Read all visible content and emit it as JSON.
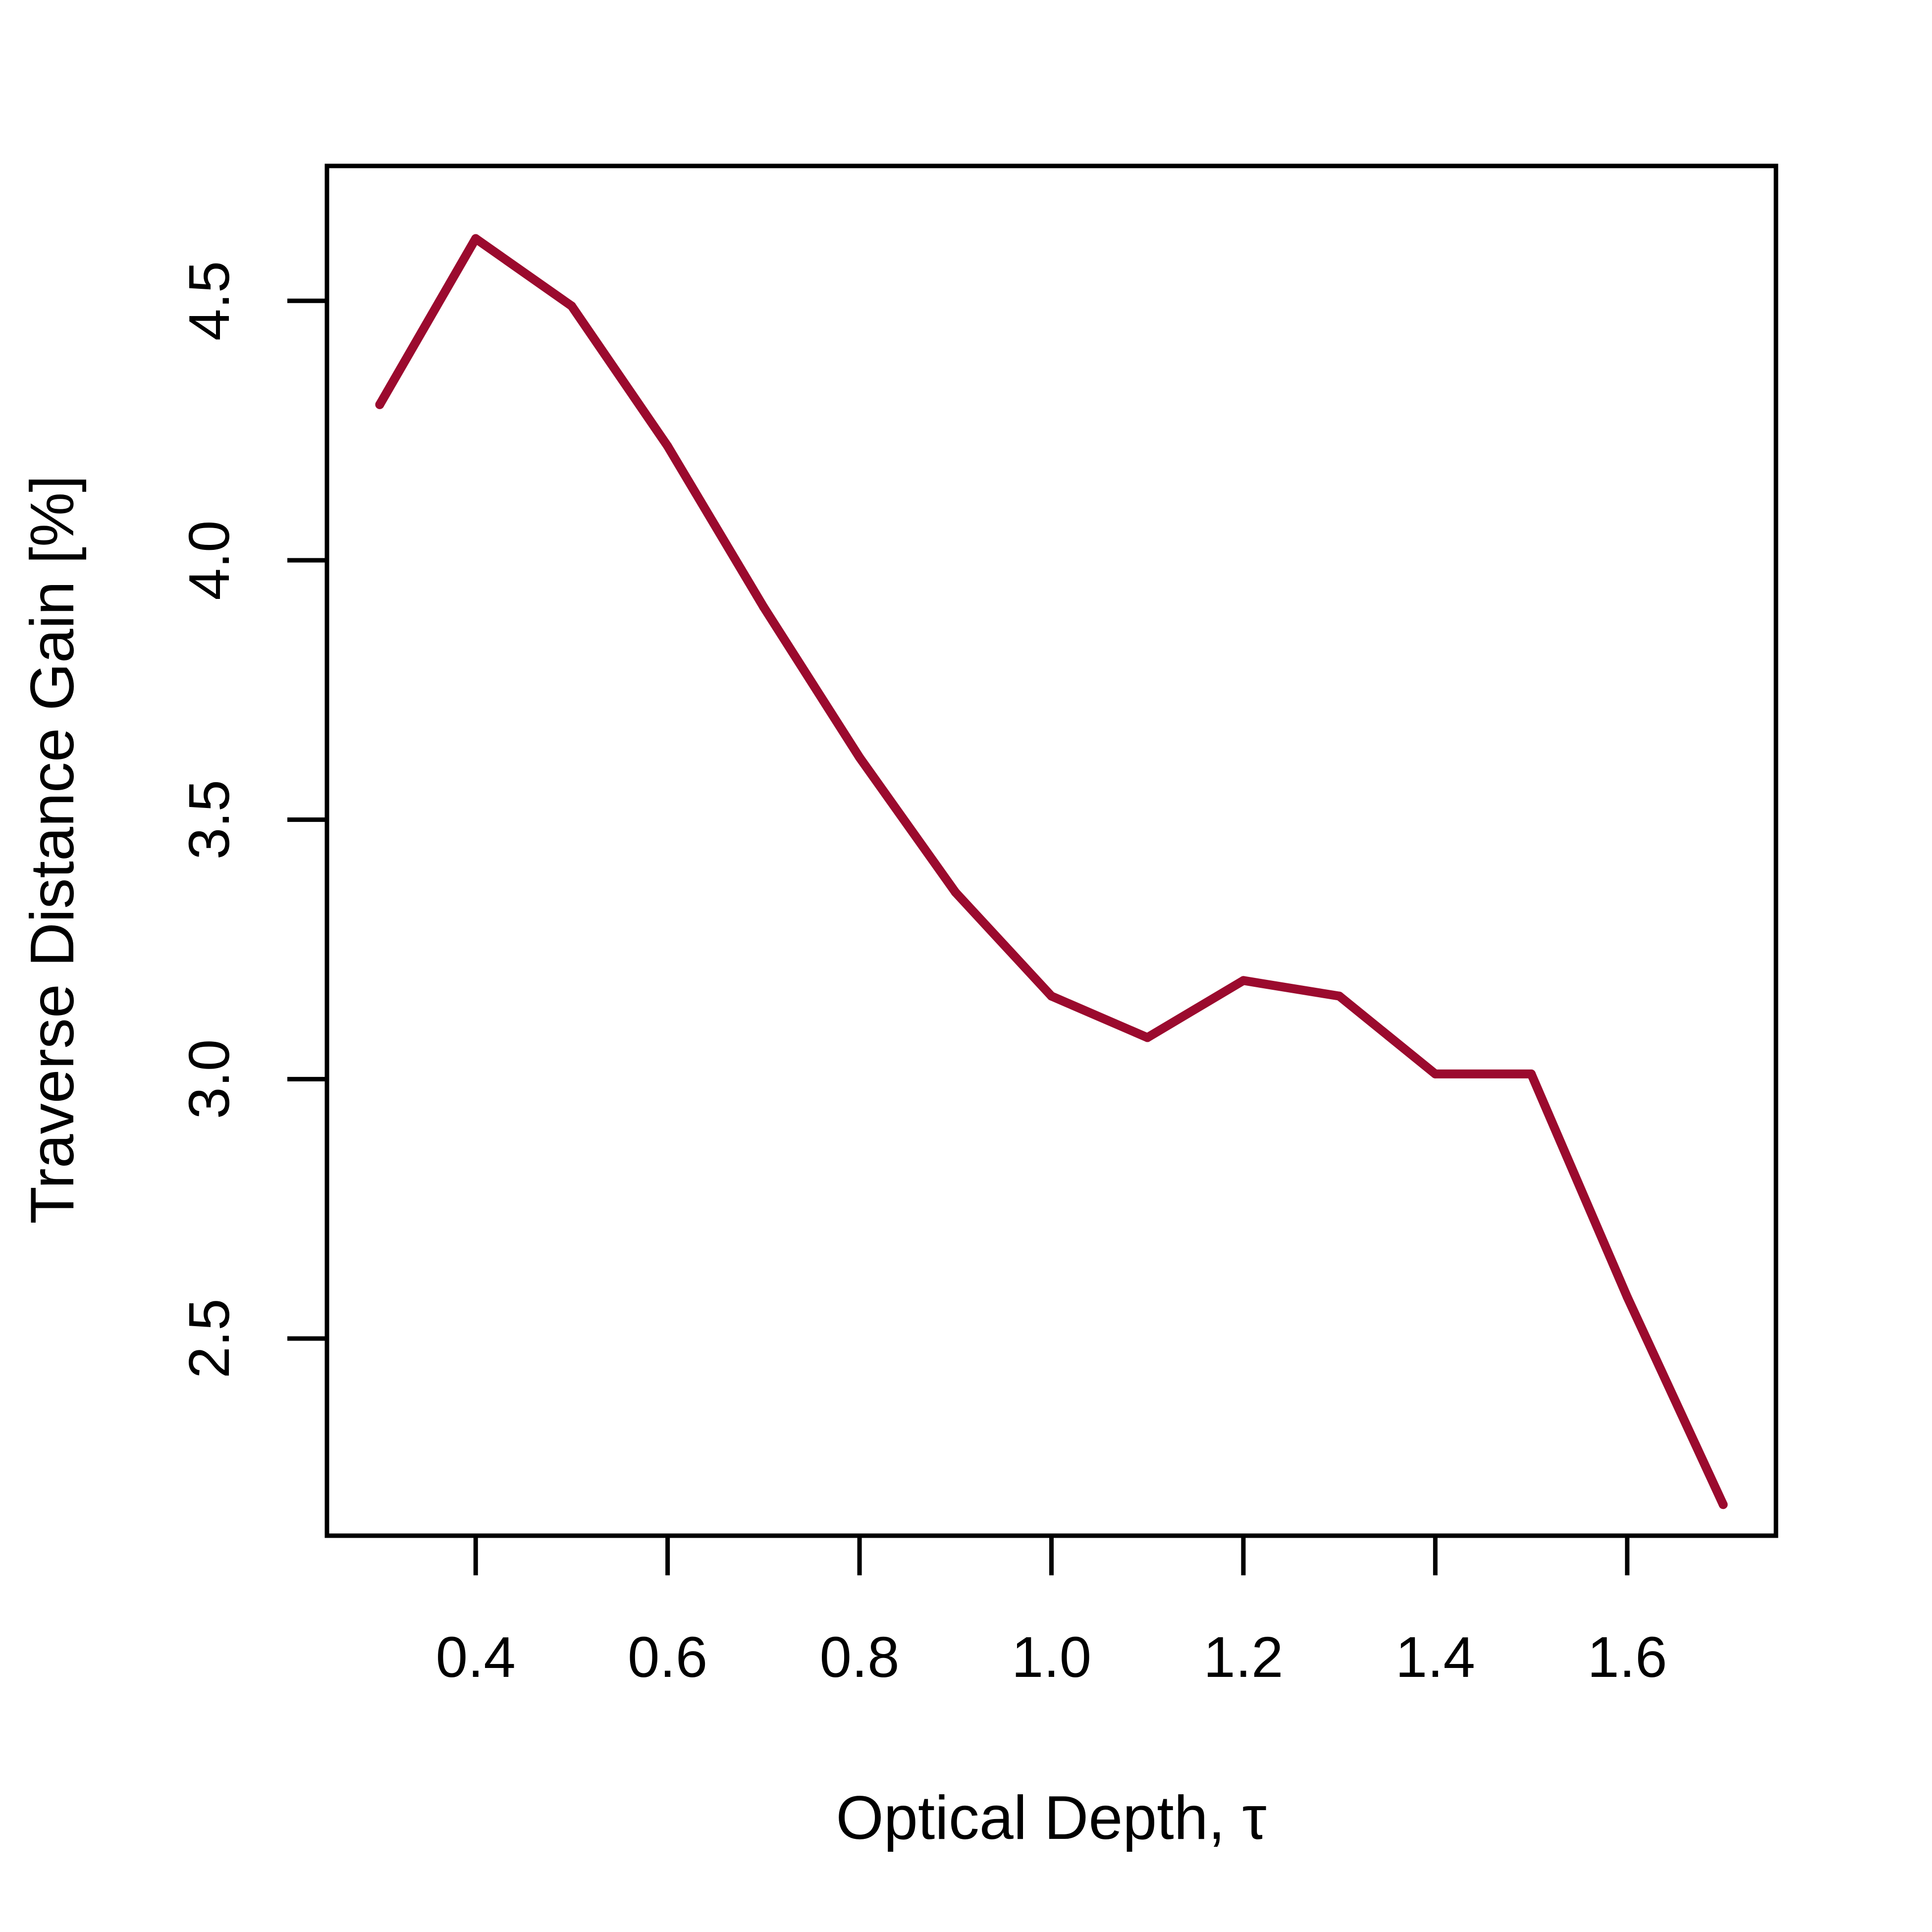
{
  "chart_data": {
    "type": "line",
    "title": "",
    "xlabel": "Optical Depth, τ",
    "ylabel": "Traverse Distance Gain [%]",
    "xlim": [
      0.245,
      1.755
    ],
    "ylim": [
      2.12,
      4.76
    ],
    "xticks": [
      0.4,
      0.6,
      0.8,
      1.0,
      1.2,
      1.4,
      1.6
    ],
    "xtick_labels": [
      "0.4",
      "0.6",
      "0.8",
      "1.0",
      "1.2",
      "1.4",
      "1.6"
    ],
    "yticks": [
      2.5,
      3.0,
      3.5,
      4.0,
      4.5
    ],
    "ytick_labels": [
      "2.5",
      "3.0",
      "3.5",
      "4.0",
      "4.5"
    ],
    "grid": false,
    "legend": "none",
    "series": [
      {
        "color": "#9b0a2e",
        "x": [
          0.3,
          0.4,
          0.5,
          0.6,
          0.7,
          0.8,
          0.9,
          1.0,
          1.1,
          1.2,
          1.3,
          1.4,
          1.5,
          1.6,
          1.7
        ],
        "y": [
          4.3,
          4.62,
          4.49,
          4.22,
          3.91,
          3.62,
          3.36,
          3.16,
          3.08,
          3.19,
          3.16,
          3.01,
          3.01,
          2.58,
          2.18
        ]
      }
    ]
  }
}
